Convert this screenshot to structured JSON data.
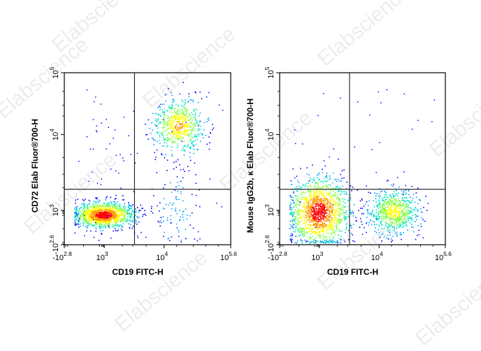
{
  "watermark": {
    "text": "Elabscience"
  },
  "colors": {
    "axis": "#000000",
    "gate": "#1a1a1a",
    "density": [
      "#0000ff",
      "#00a0ff",
      "#00e5c0",
      "#7cff3c",
      "#ffff00",
      "#ff9a00",
      "#ff0000"
    ]
  },
  "chart_data": [
    {
      "type": "scatter",
      "subtype": "flow-cytometry-density",
      "xlabel": "CD19 FITC-H",
      "ylabel": "CD72 Elab Fluor®700-H",
      "x_ticks": [
        {
          "base": "-10",
          "exp": "2.8"
        },
        {
          "base": "10",
          "exp": "3"
        },
        {
          "base": "10",
          "exp": "4"
        },
        {
          "base": "10",
          "exp": "5.6"
        }
      ],
      "y_ticks": [
        {
          "base": "-10",
          "exp": "2.6"
        },
        {
          "base": "10",
          "exp": "3"
        },
        {
          "base": "10",
          "exp": "4"
        },
        {
          "base": "10",
          "exp": "5"
        }
      ],
      "gates": {
        "x": 3200,
        "y": 1900
      },
      "populations": [
        {
          "name": "",
          "x_center": 700,
          "y_center": 200,
          "count": 2400,
          "rank": 1.0
        },
        {
          "name": "",
          "x_center": 22000,
          "y_center": 14000,
          "count": 1100,
          "rank": 0.75
        },
        {
          "name": "",
          "x_center": 18000,
          "y_center": 600,
          "count": 160,
          "rank": 0.15
        }
      ]
    },
    {
      "type": "scatter",
      "subtype": "flow-cytometry-density",
      "xlabel": "CD19 FITC-H",
      "ylabel": "Mouse IgG2b, κ Elab Fluor®700-H",
      "x_ticks": [
        {
          "base": "-10",
          "exp": "2.8"
        },
        {
          "base": "10",
          "exp": "3"
        },
        {
          "base": "10",
          "exp": "4"
        },
        {
          "base": "10",
          "exp": "5.6"
        }
      ],
      "y_ticks": [
        {
          "base": "-10",
          "exp": "2.6"
        },
        {
          "base": "10",
          "exp": "3"
        },
        {
          "base": "10",
          "exp": "4"
        },
        {
          "base": "10",
          "exp": "5"
        }
      ],
      "gates": {
        "x": 3200,
        "y": 1900
      },
      "populations": [
        {
          "name": "",
          "x_center": 750,
          "y_center": 600,
          "count": 2600,
          "rank": 1.0
        },
        {
          "name": "",
          "x_center": 22000,
          "y_center": 750,
          "count": 1300,
          "rank": 0.65
        }
      ]
    }
  ]
}
